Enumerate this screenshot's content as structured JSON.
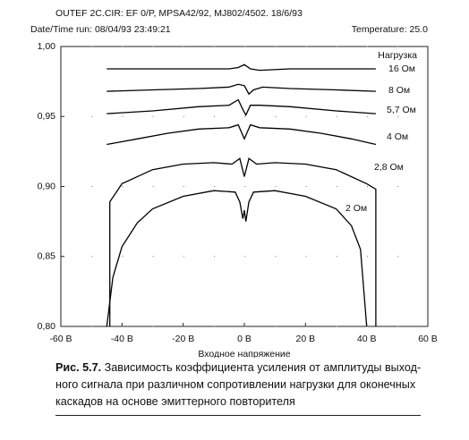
{
  "chart_data": {
    "type": "line",
    "title": "OUTEF 2C.CIR: EF 0/P, MPSA42/92, MJ802/4502.   18/6/93",
    "subtitle": "Date/Time  run: 08/04/93  23:49:21",
    "annotation": "Temperature: 25.0",
    "xlabel": "Входное напряжение",
    "legend_title": "Нагрузка",
    "xlim": [
      -60,
      60
    ],
    "xticks": [
      {
        "value": -60,
        "label": "-60 B"
      },
      {
        "value": -40,
        "label": "-40 B"
      },
      {
        "value": -20,
        "label": "-20 B"
      },
      {
        "value": 0,
        "label": "0 B"
      },
      {
        "value": 20,
        "label": "20 B"
      },
      {
        "value": 40,
        "label": "40 B"
      },
      {
        "value": 60,
        "label": "60 B"
      }
    ],
    "ylim": [
      0.8,
      1.0
    ],
    "yticks": [
      {
        "value": 0.8,
        "label": "0,80"
      },
      {
        "value": 0.85,
        "label": "0,85"
      },
      {
        "value": 0.9,
        "label": "0,90"
      },
      {
        "value": 0.95,
        "label": "0,95"
      },
      {
        "value": 1.0,
        "label": "1,00"
      }
    ],
    "grid": true,
    "series": [
      {
        "name": "16 Ом",
        "color": "#000000",
        "x": [
          -45,
          -30,
          -15,
          -5,
          -2,
          0,
          2,
          5,
          15,
          30,
          43
        ],
        "values": [
          0.984,
          0.984,
          0.984,
          0.984,
          0.985,
          0.987,
          0.984,
          0.983,
          0.984,
          0.984,
          0.984
        ]
      },
      {
        "name": "8 Ом",
        "color": "#000000",
        "x": [
          -45,
          -30,
          -15,
          -5,
          -2,
          0,
          1.5,
          3,
          6,
          15,
          30,
          43
        ],
        "values": [
          0.968,
          0.969,
          0.97,
          0.971,
          0.973,
          0.972,
          0.966,
          0.969,
          0.971,
          0.97,
          0.969,
          0.968
        ]
      },
      {
        "name": "5,7 Ом",
        "color": "#000000",
        "x": [
          -45,
          -30,
          -15,
          -5,
          -2,
          -0.5,
          0.5,
          2,
          5,
          15,
          30,
          43
        ],
        "values": [
          0.952,
          0.954,
          0.957,
          0.958,
          0.962,
          0.955,
          0.951,
          0.958,
          0.958,
          0.957,
          0.954,
          0.952
        ]
      },
      {
        "name": "4 Ом",
        "color": "#000000",
        "x": [
          -45,
          -35,
          -25,
          -15,
          -5,
          -2,
          0,
          2,
          5,
          15,
          25,
          35,
          43
        ],
        "values": [
          0.93,
          0.934,
          0.938,
          0.941,
          0.942,
          0.944,
          0.934,
          0.944,
          0.942,
          0.941,
          0.938,
          0.934,
          0.93
        ]
      },
      {
        "name": "2,8 Ом",
        "color": "#000000",
        "x": [
          -44,
          -44,
          -40,
          -30,
          -20,
          -10,
          -4,
          -1.5,
          0,
          1.5,
          4,
          10,
          20,
          30,
          40,
          43,
          43
        ],
        "values": [
          0.8,
          0.889,
          0.902,
          0.912,
          0.916,
          0.917,
          0.916,
          0.92,
          0.907,
          0.92,
          0.916,
          0.917,
          0.916,
          0.912,
          0.902,
          0.898,
          0.8
        ]
      },
      {
        "name": "2 Ом",
        "color": "#000000",
        "x": [
          -45,
          -43,
          -40,
          -35,
          -30,
          -20,
          -10,
          -3,
          -1.5,
          -0.5,
          0,
          0.5,
          1.5,
          3,
          10,
          20,
          30,
          35,
          38,
          40
        ],
        "values": [
          0.8,
          0.835,
          0.857,
          0.874,
          0.884,
          0.893,
          0.897,
          0.896,
          0.889,
          0.877,
          0.883,
          0.875,
          0.889,
          0.896,
          0.897,
          0.893,
          0.884,
          0.872,
          0.855,
          0.8
        ]
      }
    ]
  },
  "caption": {
    "label": "Рис. 5.7.",
    "lines": [
      "Зависимость коэффициента усиления от амплитуды выход-",
      "ного сигнала при различном сопротивлении нагрузки для оконечных",
      "каскадов на основе эмиттерного повторителя"
    ]
  }
}
